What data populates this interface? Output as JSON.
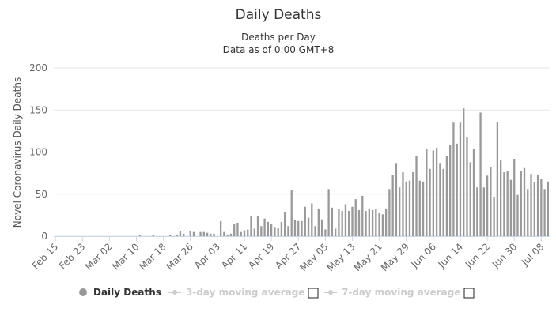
{
  "chart_data": {
    "type": "bar",
    "title": "Daily Deaths",
    "subtitle": [
      "Deaths per Day",
      "Data as of 0:00 GMT+8"
    ],
    "y_label": "Novel Coronavirus Daily Deaths",
    "categories": [
      "Feb 15",
      null,
      null,
      null,
      null,
      null,
      null,
      null,
      "Feb 23",
      null,
      null,
      null,
      null,
      null,
      null,
      null,
      "Mar 02",
      null,
      null,
      null,
      null,
      null,
      null,
      null,
      "Mar 10",
      null,
      null,
      null,
      null,
      null,
      null,
      null,
      "Mar 18",
      null,
      null,
      null,
      null,
      null,
      null,
      null,
      "Mar 26",
      null,
      null,
      null,
      null,
      null,
      null,
      null,
      "Apr 03",
      null,
      null,
      null,
      null,
      null,
      null,
      null,
      "Apr 11",
      null,
      null,
      null,
      null,
      null,
      null,
      null,
      "Apr 19",
      null,
      null,
      null,
      null,
      null,
      null,
      null,
      "Apr 27",
      null,
      null,
      null,
      null,
      null,
      null,
      null,
      "May 05",
      null,
      null,
      null,
      null,
      null,
      null,
      null,
      "May 13",
      null,
      null,
      null,
      null,
      null,
      null,
      null,
      "May 21",
      null,
      null,
      null,
      null,
      null,
      null,
      null,
      "May 29",
      null,
      null,
      null,
      null,
      null,
      null,
      null,
      "Jun 06",
      null,
      null,
      null,
      null,
      null,
      null,
      null,
      "Jun 14",
      null,
      null,
      null,
      null,
      null,
      null,
      null,
      "Jun 22",
      null,
      null,
      null,
      null,
      null,
      null,
      null,
      "Jun 30",
      null,
      null,
      null,
      null,
      null,
      null,
      null,
      "Jul 08",
      null,
      null
    ],
    "series": [
      {
        "name": "Daily Deaths",
        "color": "#999999",
        "values": [
          0,
          0,
          0,
          0,
          0,
          0,
          0,
          0,
          0,
          0,
          0,
          0,
          0,
          0,
          0,
          0,
          0,
          0,
          0,
          0,
          0,
          0,
          0,
          0,
          0,
          1,
          0,
          0,
          0,
          1,
          0,
          0,
          0,
          0,
          1,
          0,
          1,
          6,
          3,
          0,
          6,
          5,
          0,
          5,
          5,
          4,
          3,
          3,
          0,
          18,
          5,
          2,
          3,
          14,
          16,
          5,
          7,
          8,
          24,
          9,
          24,
          12,
          21,
          17,
          14,
          11,
          10,
          17,
          29,
          12,
          55,
          19,
          18,
          18,
          35,
          22,
          39,
          12,
          33,
          20,
          8,
          56,
          34,
          9,
          32,
          30,
          38,
          30,
          35,
          44,
          31,
          48,
          30,
          33,
          31,
          32,
          28,
          26,
          33,
          56,
          73,
          87,
          58,
          76,
          65,
          66,
          76,
          95,
          66,
          65,
          104,
          80,
          102,
          105,
          87,
          80,
          95,
          108,
          135,
          110,
          135,
          152,
          118,
          88,
          104,
          58,
          147,
          58,
          72,
          82,
          47,
          136,
          90,
          76,
          77,
          67,
          92,
          49,
          77,
          81,
          56,
          74,
          64,
          73,
          68,
          56,
          65
        ]
      }
    ],
    "inactive_legend": [
      "3-day moving average",
      "7-day moving average"
    ],
    "ylim": [
      0,
      200
    ],
    "yticks": [
      0,
      50,
      100,
      150,
      200
    ],
    "grid": true
  }
}
